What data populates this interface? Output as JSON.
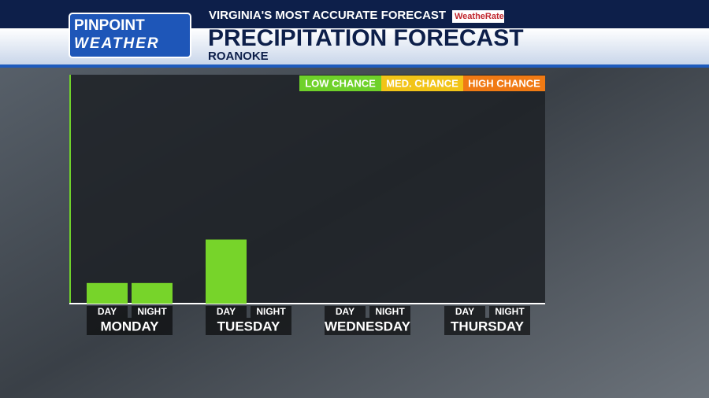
{
  "chart_data": {
    "type": "bar",
    "header": {
      "logo_top": "PINPOINT",
      "logo_bottom": "WEATHER",
      "tagline": "VIRGINIA'S MOST ACCURATE FORECAST",
      "badge": "WeatheRate"
    },
    "title": "PRECIPITATION FORECAST",
    "subtitle": "ROANOKE",
    "legend": [
      {
        "label": "LOW CHANCE",
        "color": "#6fd12a"
      },
      {
        "label": "MED. CHANCE",
        "color": "#f2c418"
      },
      {
        "label": "HIGH CHANCE",
        "color": "#f07a14"
      }
    ],
    "categories": [
      "DAY",
      "NIGHT",
      "DAY",
      "NIGHT",
      "DAY",
      "NIGHT",
      "DAY",
      "NIGHT"
    ],
    "groups": [
      "MONDAY",
      "TUESDAY",
      "WEDNESDAY",
      "THURSDAY"
    ],
    "values": [
      9,
      9,
      28,
      0,
      0,
      0,
      0,
      0
    ],
    "color": "#77d42a",
    "ylim": [
      0,
      100
    ]
  }
}
